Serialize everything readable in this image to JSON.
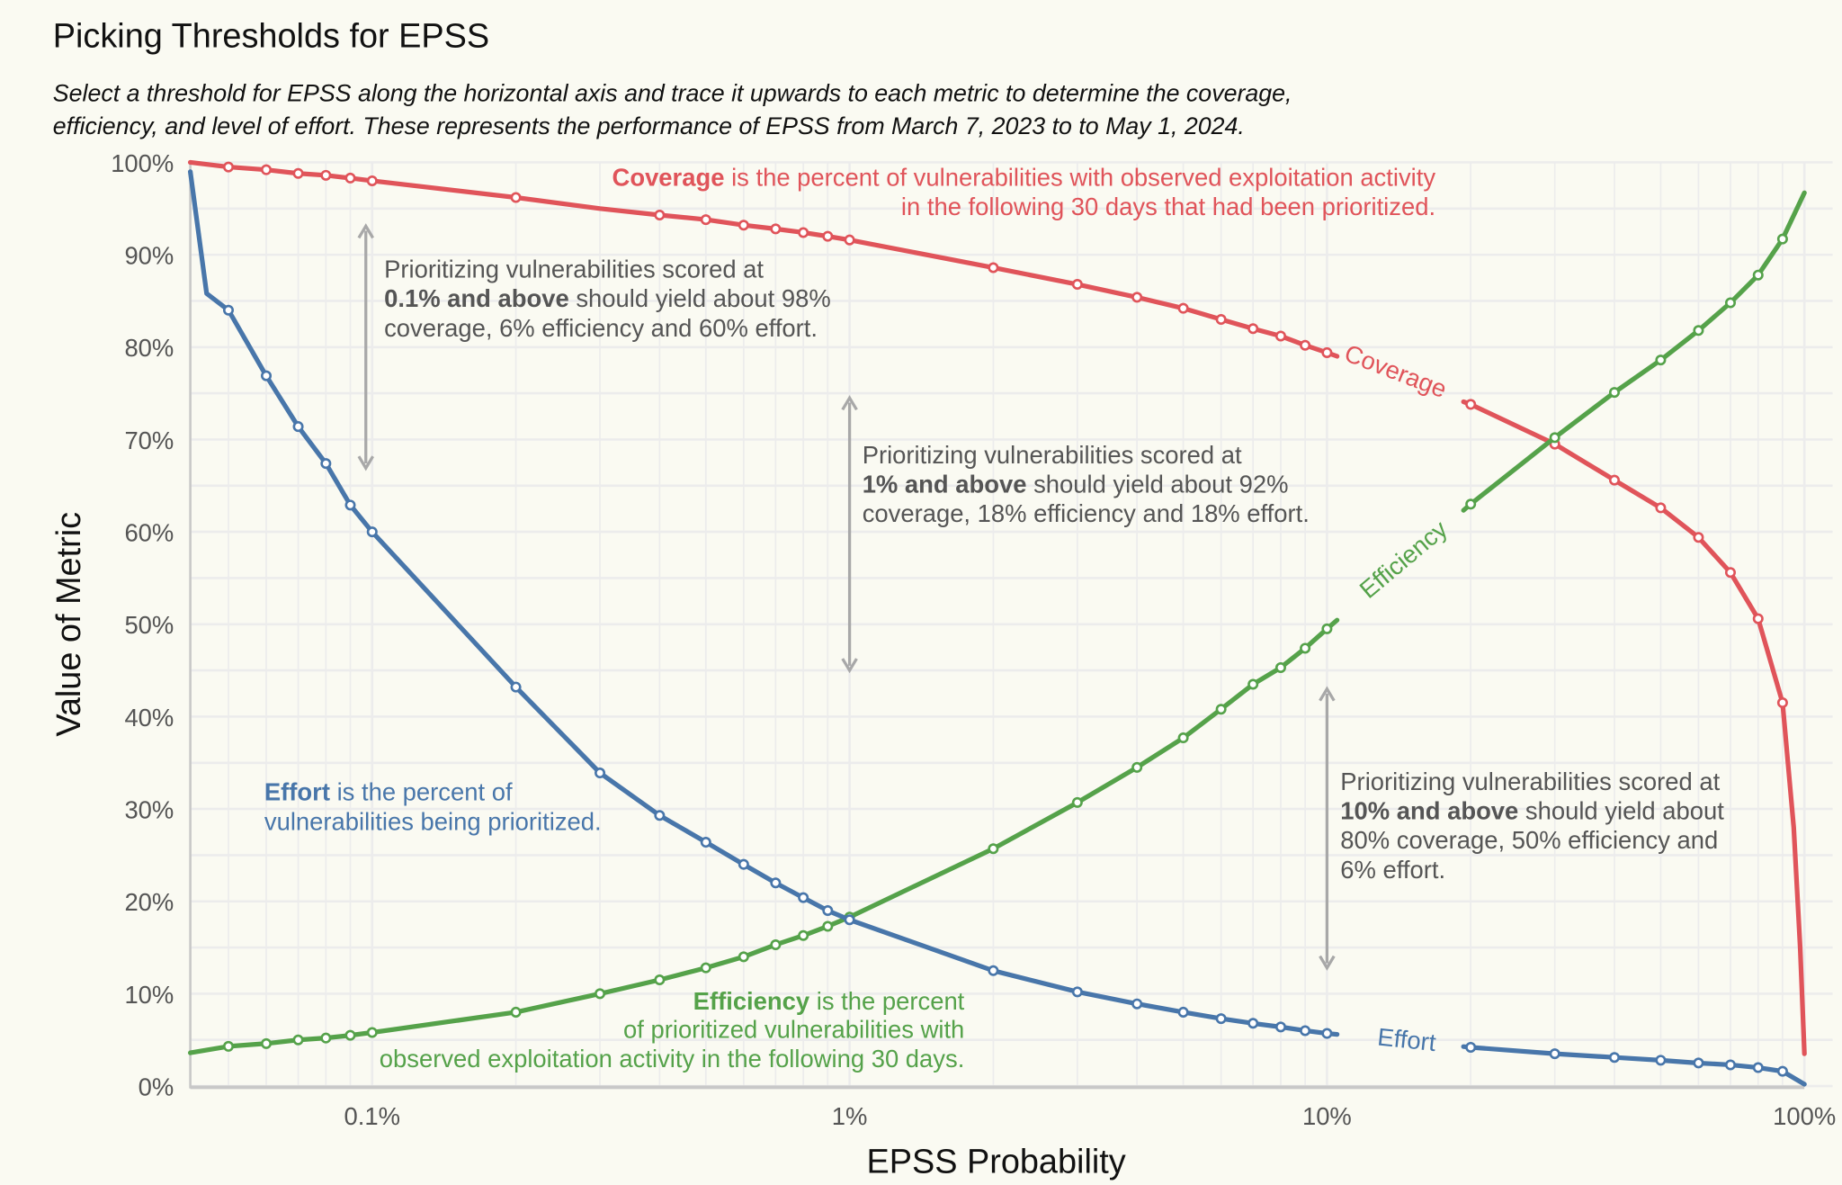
{
  "title": "Picking Thresholds for EPSS",
  "subtitle": [
    "Select a threshold for EPSS along the horizontal axis and trace it upwards to each metric to determine the coverage,",
    "efficiency, and level of effort. These represents the performance of EPSS from March 7, 2023 to  to May 1, 2024."
  ],
  "chart_data": {
    "type": "line",
    "x_scale": "log",
    "xlabel": "EPSS Probability",
    "ylabel": "Value of Metric",
    "xlim": [
      0.000416,
      1.0
    ],
    "ylim": [
      0,
      100
    ],
    "grid": true,
    "xticks": [
      {
        "value": 0.001,
        "label": "0.1%"
      },
      {
        "value": 0.01,
        "label": "1%"
      },
      {
        "value": 0.1,
        "label": "10%"
      },
      {
        "value": 1.0,
        "label": "100%"
      }
    ],
    "yticks": [
      "0%",
      "10%",
      "20%",
      "30%",
      "40%",
      "50%",
      "60%",
      "70%",
      "80%",
      "90%",
      "100%"
    ],
    "colors": {
      "coverage": "#e0545a",
      "efficiency": "#55a24a",
      "effort": "#4876aa",
      "arrow": "#a8a8a8",
      "background": "#fafaf2"
    },
    "series": [
      {
        "name": "Coverage",
        "x": [
          0.000416,
          0.0005,
          0.0006,
          0.0007,
          0.0008,
          0.0009,
          0.001,
          0.002,
          0.003,
          0.004,
          0.005,
          0.006,
          0.007,
          0.008,
          0.009,
          0.01,
          0.02,
          0.03,
          0.04,
          0.05,
          0.06,
          0.07,
          0.08,
          0.09,
          0.1,
          0.2,
          0.3,
          0.4,
          0.5,
          0.6,
          0.7,
          0.8,
          0.9,
          0.95,
          0.98,
          1.0
        ],
        "y": [
          100,
          99.5,
          99.2,
          98.8,
          98.6,
          98.3,
          98.0,
          96.2,
          95.0,
          94.3,
          93.8,
          93.2,
          92.8,
          92.4,
          92.0,
          91.6,
          88.6,
          86.8,
          85.4,
          84.2,
          83.0,
          82.0,
          81.2,
          80.2,
          79.4,
          73.8,
          69.5,
          65.6,
          62.6,
          59.4,
          55.6,
          50.6,
          41.5,
          28.0,
          15.0,
          3.5
        ]
      },
      {
        "name": "Efficiency",
        "x": [
          0.000416,
          0.0005,
          0.0006,
          0.0007,
          0.0008,
          0.0009,
          0.001,
          0.002,
          0.003,
          0.004,
          0.005,
          0.006,
          0.007,
          0.008,
          0.009,
          0.01,
          0.02,
          0.03,
          0.04,
          0.05,
          0.06,
          0.07,
          0.08,
          0.09,
          0.1,
          0.2,
          0.3,
          0.4,
          0.5,
          0.6,
          0.7,
          0.8,
          0.9,
          1.0
        ],
        "y": [
          3.6,
          4.3,
          4.6,
          5.0,
          5.2,
          5.5,
          5.8,
          8.0,
          10.0,
          11.5,
          12.8,
          14.0,
          15.3,
          16.3,
          17.3,
          18.3,
          25.7,
          30.7,
          34.5,
          37.7,
          40.8,
          43.5,
          45.3,
          47.4,
          49.5,
          63.0,
          70.2,
          75.1,
          78.6,
          81.8,
          84.8,
          87.8,
          91.7,
          96.7
        ]
      },
      {
        "name": "Effort",
        "x": [
          0.000416,
          0.00045,
          0.0005,
          0.0006,
          0.0007,
          0.0008,
          0.0009,
          0.001,
          0.002,
          0.003,
          0.004,
          0.005,
          0.006,
          0.007,
          0.008,
          0.009,
          0.01,
          0.02,
          0.03,
          0.04,
          0.05,
          0.06,
          0.07,
          0.08,
          0.09,
          0.1,
          0.2,
          0.3,
          0.4,
          0.5,
          0.6,
          0.7,
          0.8,
          0.9,
          1.0
        ],
        "y": [
          99.0,
          85.8,
          84.0,
          76.9,
          71.4,
          67.4,
          62.9,
          60.0,
          43.2,
          33.9,
          29.3,
          26.4,
          24.0,
          22.0,
          20.4,
          19.0,
          18.0,
          12.5,
          10.2,
          8.9,
          8.0,
          7.3,
          6.8,
          6.4,
          6.0,
          5.7,
          4.2,
          3.5,
          3.1,
          2.8,
          2.5,
          2.3,
          2.0,
          1.6,
          0.2
        ]
      }
    ],
    "inline_labels": {
      "coverage": "Coverage",
      "efficiency": "Efficiency",
      "effort": "Effort"
    },
    "arrows": [
      {
        "x": 0.00097,
        "y_from": 93.1,
        "y_to": 66.9
      },
      {
        "x": 0.01,
        "y_from": 74.5,
        "y_to": 45.0
      },
      {
        "x": 0.1,
        "y_from": 43.0,
        "y_to": 12.8
      }
    ]
  },
  "notes": {
    "coverage": {
      "bold": "Coverage",
      "line1": " is the percent of vulnerabilities with observed exploitation activity",
      "line2": "in the following 30 days that had been prioritized."
    },
    "effort": {
      "bold": "Effort",
      "line1": " is the percent of",
      "line2": "vulnerabilities being prioritized."
    },
    "efficiency": {
      "bold": "Efficiency",
      "line1": " is the percent",
      "line2": "of prioritized vulnerabilities with",
      "line3": "observed exploitation activity in the following 30 days."
    },
    "threshold_01": {
      "line1": "Prioritizing vulnerabilities scored at",
      "bold": "0.1% and above",
      "line2": " should yield about 98%",
      "line3": "coverage, 6% efficiency and 60% effort."
    },
    "threshold_1": {
      "line1": "Prioritizing vulnerabilities scored at",
      "bold": "1% and above",
      "line2": " should yield about 92%",
      "line3": "coverage, 18% efficiency and 18% effort."
    },
    "threshold_10": {
      "line1": "Prioritizing vulnerabilities scored at",
      "bold": "10% and above",
      "line2": " should yield about",
      "line3": "80% coverage, 50% efficiency and",
      "line4": "6% effort."
    }
  }
}
